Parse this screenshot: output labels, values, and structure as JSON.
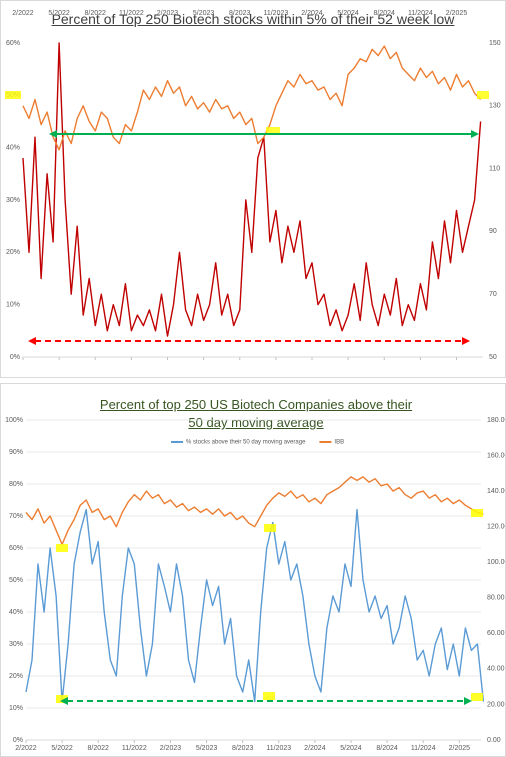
{
  "chart_data": [
    {
      "type": "line",
      "title": "Percent of Top 250 Biotech stocks within 5% of their 52 week low",
      "x": [
        0,
        0.5,
        1,
        1.5,
        2,
        2.5,
        3,
        3.5,
        4,
        4.5,
        5,
        5.5,
        6,
        6.5,
        7,
        7.5,
        8,
        8.5,
        9,
        9.5,
        10,
        10.5,
        11,
        11.5,
        12,
        12.5,
        13,
        13.5,
        14,
        14.5,
        15,
        15.5,
        16,
        16.5,
        17,
        17.5,
        18,
        18.5,
        19,
        19.5,
        20,
        20.5,
        21,
        21.5,
        22,
        22.5,
        23,
        23.5,
        24,
        24.5,
        25,
        25.5,
        26,
        26.5,
        27,
        27.5,
        28,
        28.5,
        29,
        29.5,
        30,
        30.5,
        31,
        31.5,
        32,
        32.5,
        33,
        33.5,
        34,
        34.5,
        35,
        35.5,
        36,
        36.5,
        37,
        37.5,
        38
      ],
      "series": [
        {
          "color": "#c00000",
          "values": [
            38,
            20,
            42,
            15,
            35,
            22,
            60,
            30,
            12,
            25,
            8,
            15,
            6,
            12,
            5,
            10,
            6,
            14,
            5,
            8,
            6,
            9,
            5,
            12,
            4,
            10,
            20,
            9,
            6,
            12,
            7,
            10,
            18,
            8,
            12,
            6,
            9,
            30,
            20,
            38,
            42,
            22,
            28,
            18,
            25,
            20,
            26,
            15,
            18,
            10,
            12,
            6,
            9,
            5,
            8,
            14,
            7,
            18,
            10,
            6,
            12,
            8,
            15,
            6,
            10,
            7,
            14,
            9,
            22,
            15,
            26,
            18,
            28,
            20,
            25,
            30,
            45
          ]
        },
        {
          "color": "#ed7d31",
          "axis": "y2",
          "values": [
            130,
            126,
            132,
            124,
            128,
            120,
            116,
            122,
            118,
            126,
            130,
            125,
            122,
            128,
            126,
            120,
            118,
            124,
            122,
            128,
            135,
            132,
            136,
            133,
            138,
            134,
            136,
            130,
            133,
            129,
            131,
            128,
            132,
            129,
            130,
            126,
            128,
            124,
            126,
            118,
            120,
            124,
            130,
            134,
            138,
            136,
            140,
            137,
            138,
            135,
            136,
            132,
            134,
            130,
            140,
            142,
            145,
            144,
            148,
            146,
            149,
            145,
            147,
            142,
            140,
            138,
            142,
            139,
            141,
            137,
            139,
            135,
            140,
            136,
            138,
            134,
            132
          ]
        }
      ],
      "xlim": [
        0,
        38.2
      ],
      "xticks": [
        {
          "value": 0,
          "label": "2/2022"
        },
        {
          "value": 3,
          "label": "5/2022"
        },
        {
          "value": 6,
          "label": "8/2022"
        },
        {
          "value": 9,
          "label": "11/2022"
        },
        {
          "value": 12,
          "label": "2/2023"
        },
        {
          "value": 15,
          "label": "5/2023"
        },
        {
          "value": 18,
          "label": "8/2023"
        },
        {
          "value": 21,
          "label": "11/2023"
        },
        {
          "value": 24,
          "label": "2/2024"
        },
        {
          "value": 27,
          "label": "5/2024"
        },
        {
          "value": 30,
          "label": "8/2024"
        },
        {
          "value": 33,
          "label": "11/2024"
        },
        {
          "value": 36,
          "label": "2/2025"
        }
      ],
      "ylim": [
        0,
        60
      ],
      "yticks": [
        {
          "value": 0,
          "label": "0%"
        },
        {
          "value": 10,
          "label": "10%"
        },
        {
          "value": 20,
          "label": "20%"
        },
        {
          "value": 30,
          "label": "30%"
        },
        {
          "value": 40,
          "label": "40%"
        },
        {
          "value": 50,
          "label": "50%"
        },
        {
          "value": 60,
          "label": "60%"
        }
      ],
      "y2lim": [
        50,
        150
      ],
      "y2ticks": [
        50,
        70,
        90,
        110,
        130,
        150
      ],
      "grid": false
    },
    {
      "type": "line",
      "title": "Percent of top 250 US Biotech Companies above their 50 day moving average",
      "x": [
        0,
        0.5,
        1,
        1.5,
        2,
        2.5,
        3,
        3.5,
        4,
        4.5,
        5,
        5.5,
        6,
        6.5,
        7,
        7.5,
        8,
        8.5,
        9,
        9.5,
        10,
        10.5,
        11,
        11.5,
        12,
        12.5,
        13,
        13.5,
        14,
        14.5,
        15,
        15.5,
        16,
        16.5,
        17,
        17.5,
        18,
        18.5,
        19,
        19.5,
        20,
        20.5,
        21,
        21.5,
        22,
        22.5,
        23,
        23.5,
        24,
        24.5,
        25,
        25.5,
        26,
        26.5,
        27,
        27.5,
        28,
        28.5,
        29,
        29.5,
        30,
        30.5,
        31,
        31.5,
        32,
        32.5,
        33,
        33.5,
        34,
        34.5,
        35,
        35.5,
        36,
        36.5,
        37,
        37.5,
        38
      ],
      "series": [
        {
          "name": "% stocks above their 50 day moving average",
          "color": "#5b9bd5",
          "values": [
            15,
            25,
            55,
            40,
            60,
            45,
            12,
            30,
            55,
            65,
            72,
            55,
            62,
            40,
            25,
            20,
            45,
            60,
            55,
            35,
            20,
            30,
            55,
            48,
            40,
            55,
            45,
            25,
            18,
            35,
            50,
            42,
            48,
            30,
            38,
            20,
            15,
            25,
            12,
            40,
            60,
            68,
            55,
            62,
            50,
            55,
            45,
            30,
            20,
            15,
            35,
            45,
            40,
            55,
            48,
            72,
            50,
            40,
            45,
            38,
            42,
            30,
            35,
            45,
            38,
            25,
            28,
            20,
            30,
            35,
            22,
            30,
            20,
            35,
            28,
            30,
            12
          ]
        },
        {
          "name": "IBB",
          "color": "#ed7d31",
          "axis": "y2",
          "values": [
            128,
            124,
            130,
            122,
            126,
            118,
            110,
            118,
            124,
            132,
            135,
            128,
            130,
            124,
            126,
            120,
            128,
            134,
            138,
            135,
            140,
            136,
            138,
            133,
            135,
            131,
            133,
            129,
            131,
            128,
            130,
            127,
            130,
            126,
            128,
            124,
            126,
            122,
            120,
            126,
            132,
            136,
            139,
            137,
            140,
            136,
            138,
            134,
            136,
            133,
            138,
            140,
            142,
            145,
            148,
            146,
            148,
            145,
            147,
            143,
            144,
            140,
            142,
            138,
            136,
            139,
            140,
            136,
            138,
            134,
            136,
            133,
            135,
            132,
            130,
            128,
            127
          ]
        }
      ],
      "xlim": [
        0,
        37.8
      ],
      "xticks": [
        {
          "value": 0,
          "label": "2/2022"
        },
        {
          "value": 3,
          "label": "5/2022"
        },
        {
          "value": 6,
          "label": "8/2022"
        },
        {
          "value": 9,
          "label": "11/2022"
        },
        {
          "value": 12,
          "label": "2/2023"
        },
        {
          "value": 15,
          "label": "5/2023"
        },
        {
          "value": 18,
          "label": "8/2023"
        },
        {
          "value": 21,
          "label": "11/2023"
        },
        {
          "value": 24,
          "label": "2/2024"
        },
        {
          "value": 27,
          "label": "5/2024"
        },
        {
          "value": 30,
          "label": "8/2024"
        },
        {
          "value": 33,
          "label": "11/2024"
        },
        {
          "value": 36,
          "label": "2/2025"
        }
      ],
      "ylim": [
        0,
        100
      ],
      "yticks": [
        {
          "value": 0,
          "label": "0%"
        },
        {
          "value": 10,
          "label": "10%"
        },
        {
          "value": 20,
          "label": "20%"
        },
        {
          "value": 30,
          "label": "30%"
        },
        {
          "value": 40,
          "label": "40%"
        },
        {
          "value": 50,
          "label": "50%"
        },
        {
          "value": 60,
          "label": "60%"
        },
        {
          "value": 70,
          "label": "70%"
        },
        {
          "value": 80,
          "label": "80%"
        },
        {
          "value": 90,
          "label": "90%"
        },
        {
          "value": 100,
          "label": "100%"
        }
      ],
      "y2lim": [
        0,
        180
      ],
      "y2ticks": [
        {
          "value": 0,
          "label": "0.00"
        },
        {
          "value": 20,
          "label": "20.00"
        },
        {
          "value": 40,
          "label": "40.00"
        },
        {
          "value": 60,
          "label": "60.00"
        },
        {
          "value": 80,
          "label": "80.00"
        },
        {
          "value": 100,
          "label": "100.00"
        },
        {
          "value": 120,
          "label": "120.00"
        },
        {
          "value": 140,
          "label": "140.00"
        },
        {
          "value": 160,
          "label": "160.00"
        },
        {
          "value": 180,
          "label": "180.00"
        }
      ],
      "grid": true,
      "legend": "top"
    }
  ]
}
